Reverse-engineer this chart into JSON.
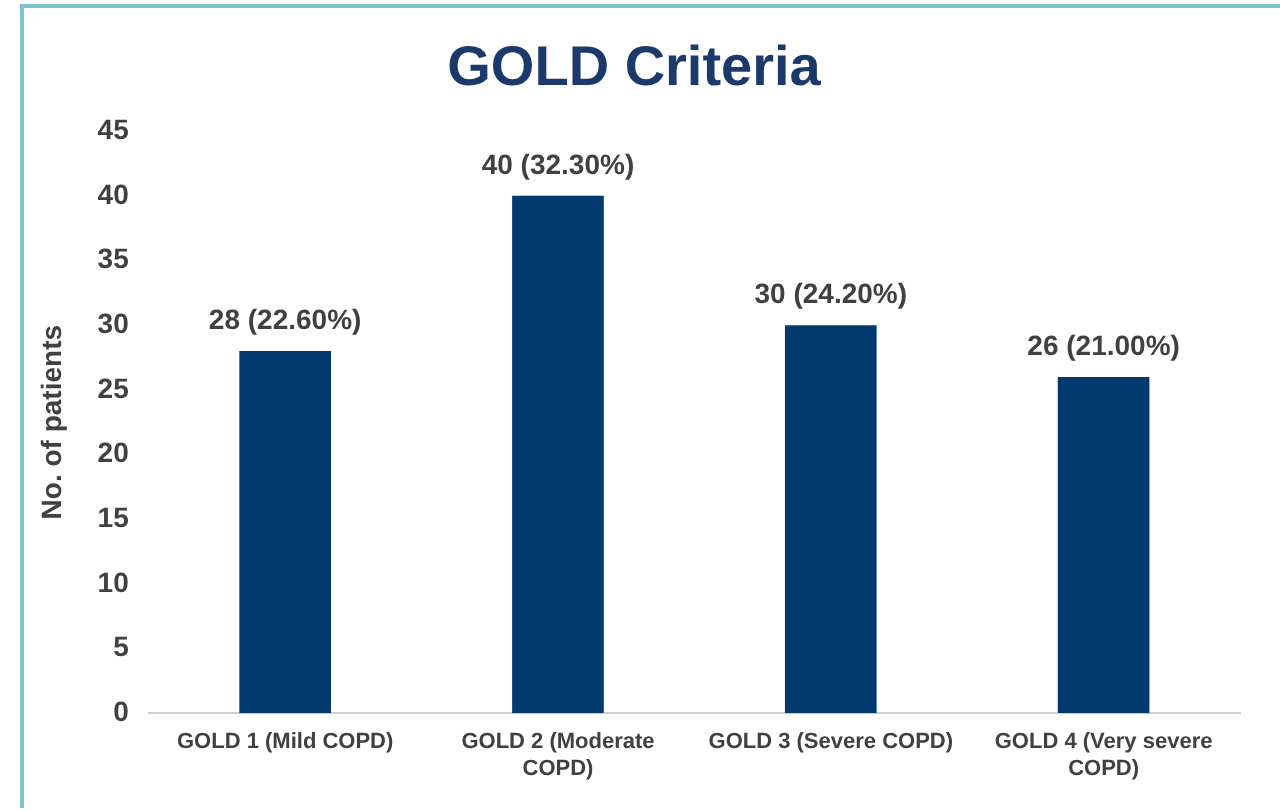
{
  "chart_data": {
    "type": "bar",
    "title": "GOLD Criteria",
    "ylabel": "No. of patients",
    "categories": [
      "GOLD 1 (Mild COPD)",
      "GOLD 2 (Moderate COPD)",
      "GOLD 3 (Severe COPD)",
      "GOLD 4 (Very severe COPD)"
    ],
    "values": [
      28,
      40,
      30,
      26
    ],
    "color": "#023a70",
    "value_labels": [
      "28 (22.60%)",
      "40 (32.30%)",
      "30 (24.20%)",
      "26 (21.00%)"
    ],
    "ylim": [
      0,
      45
    ],
    "yticks": [
      0,
      5,
      10,
      15,
      20,
      25,
      30,
      35,
      40,
      45
    ],
    "grid": false,
    "legend": false
  }
}
